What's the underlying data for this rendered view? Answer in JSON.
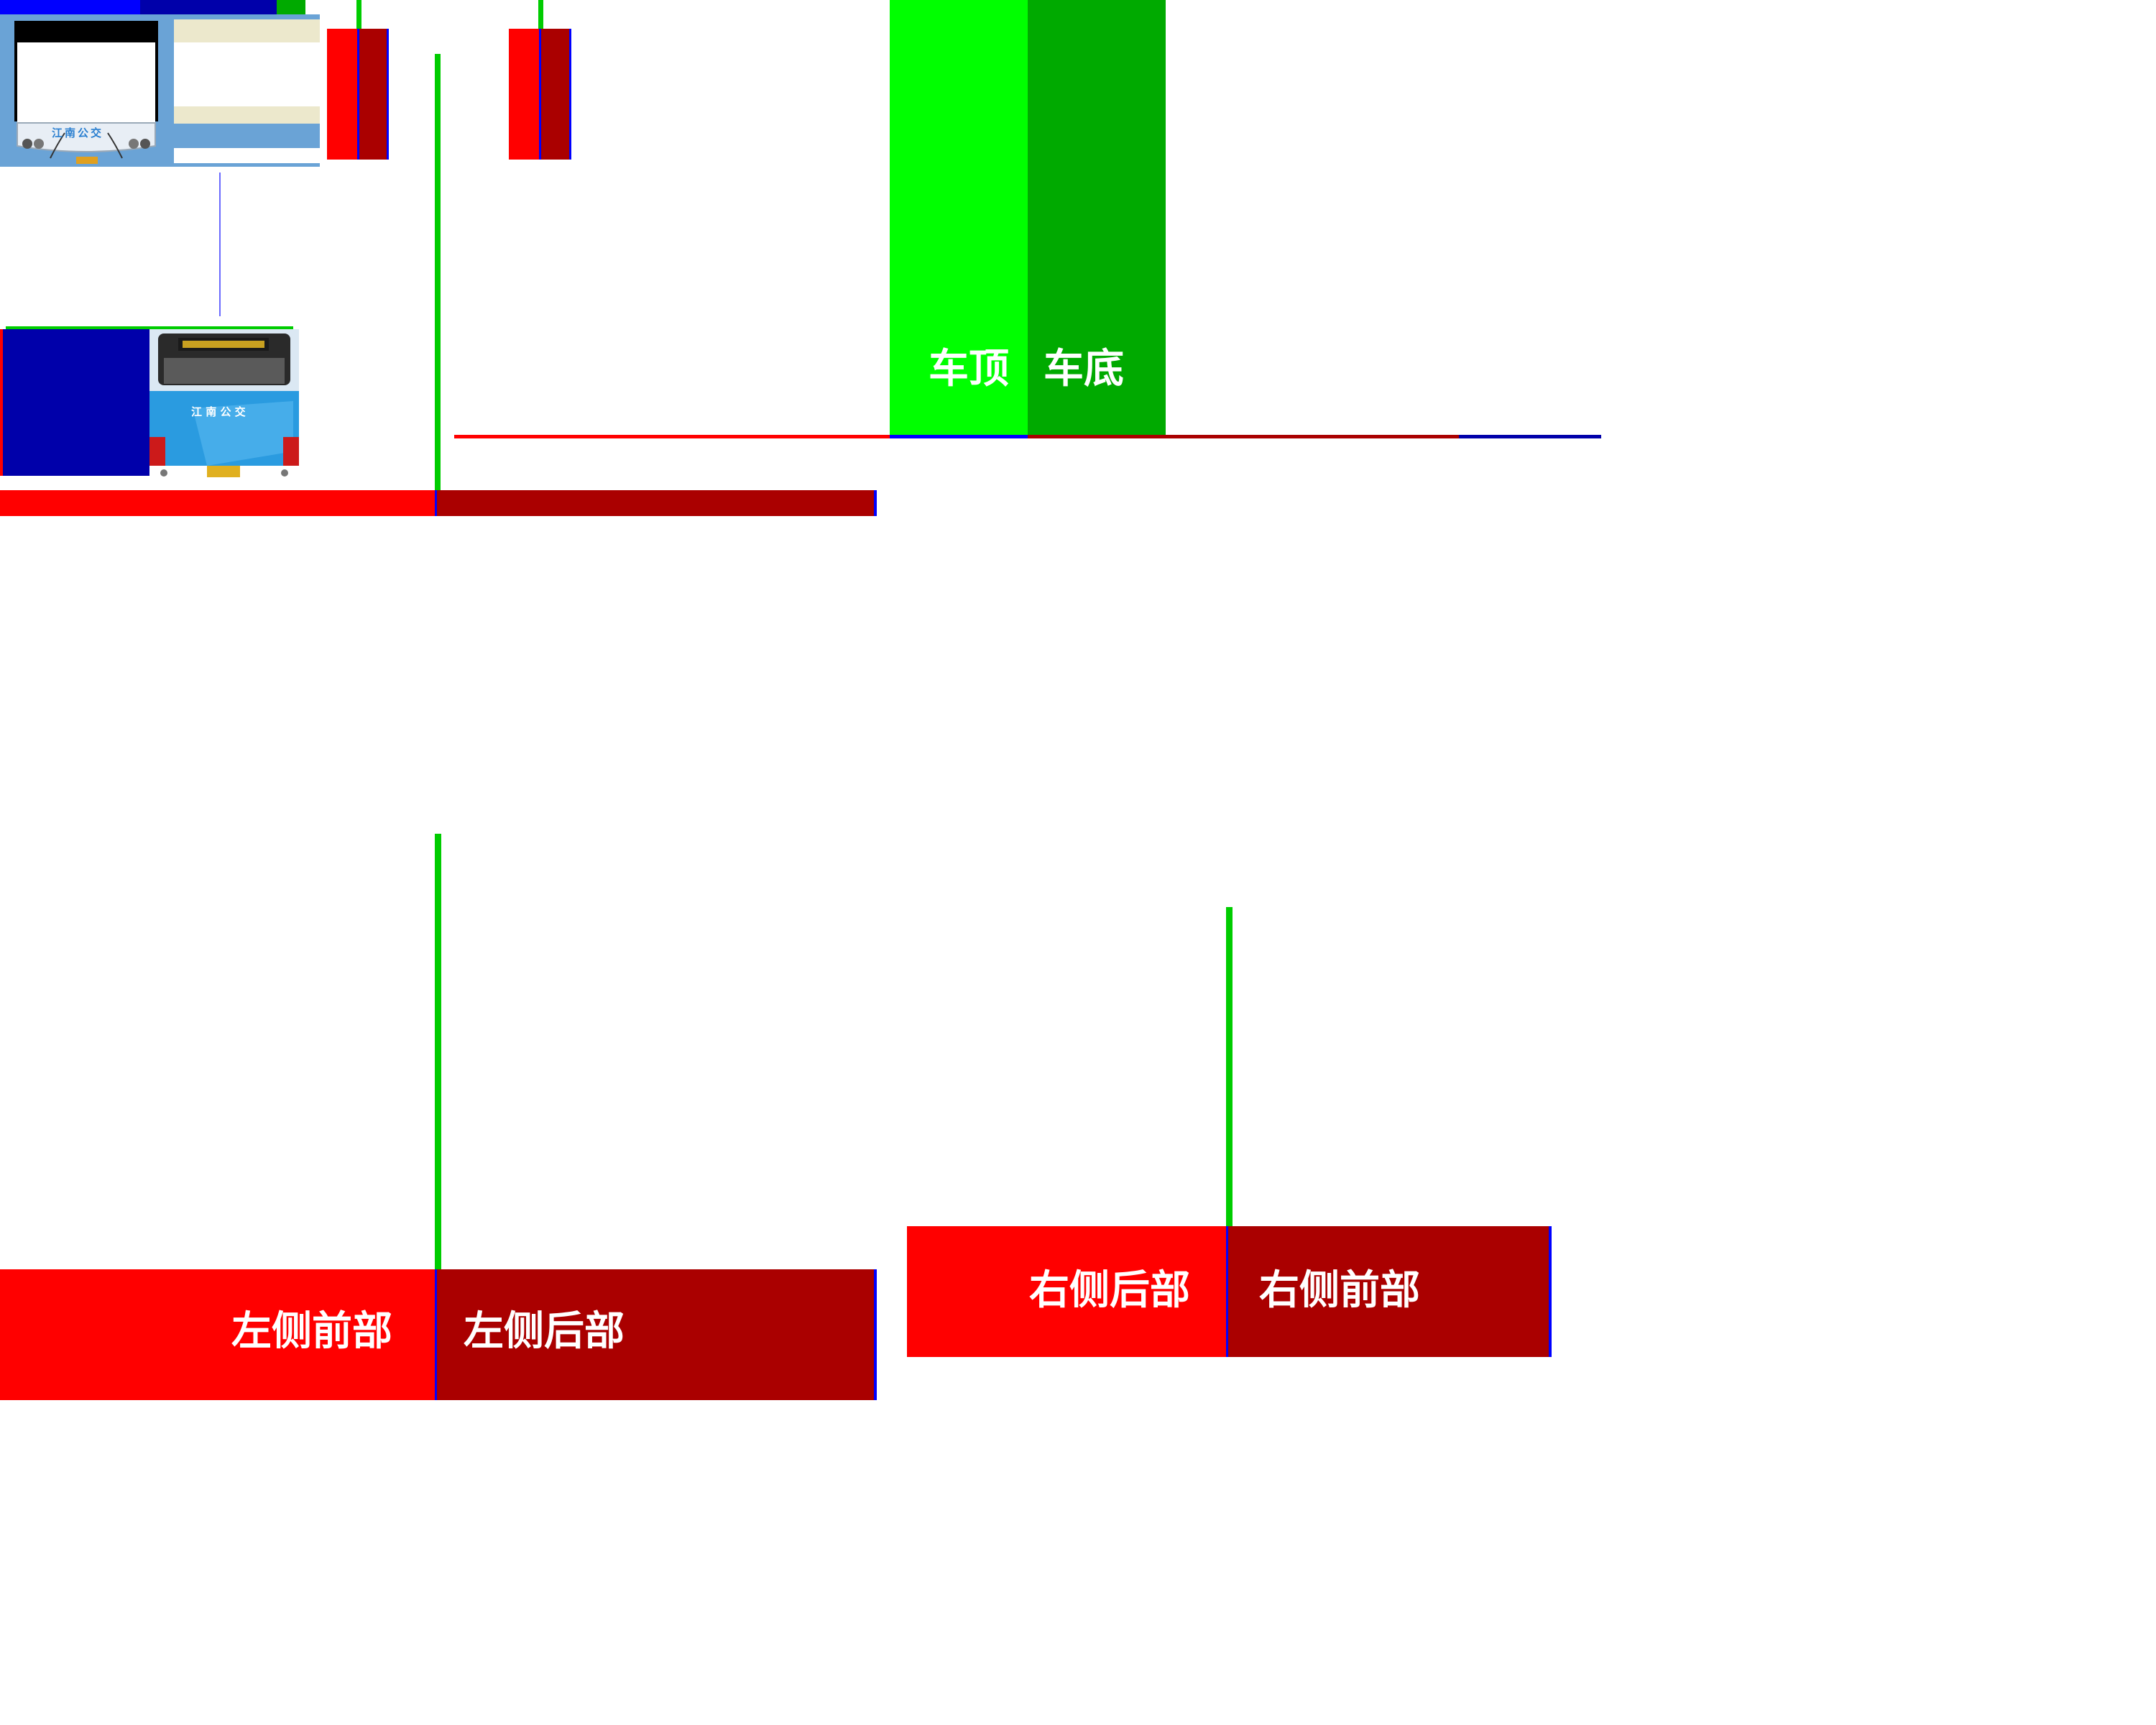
{
  "colors": {
    "bright_red": "#ff0000",
    "dark_red": "#aa0000",
    "bright_green": "#00ff00",
    "dark_green": "#00aa00",
    "blue": "#0000ff",
    "dark_blue": "#0000aa",
    "thumb_blue": "#6aa3d6",
    "thumb_cream": "#ece8cc",
    "bus_blue": "#2a9be0"
  },
  "labels": {
    "roof": "车顶",
    "bottom": "车底",
    "left_front": "左侧前部",
    "left_rear": "左侧后部",
    "right_rear": "右侧后部",
    "right_front": "右侧前部"
  },
  "bus_front": {
    "company": "江南公交"
  },
  "bus_rear": {
    "company": "江 南 公 交"
  }
}
